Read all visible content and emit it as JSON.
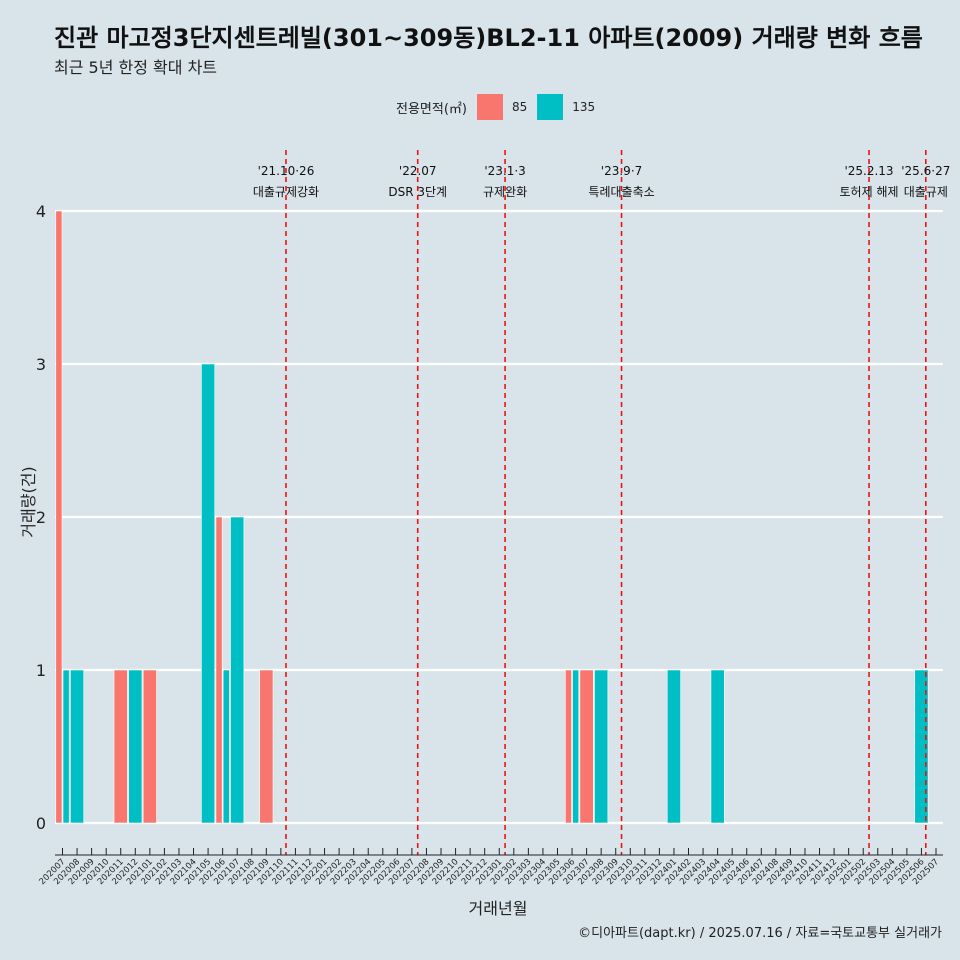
{
  "page": {
    "title": "진관 마고정3단지센트레빌(301~309동)BL2-11 아파트(2009) 거래량 변화 흐름",
    "subtitle": "최근 5년 한정 확대 차트",
    "footer": "©디아파트(dapt.kr) / 2025.07.16 / 자료=국토교통부 실거래가"
  },
  "legend": {
    "title": "전용면적(㎡)",
    "items": [
      {
        "label": "85",
        "color": "#f8766d"
      },
      {
        "label": "135",
        "color": "#00bfc4"
      }
    ]
  },
  "chart_data": {
    "type": "bar",
    "xlabel": "거래년월",
    "ylabel": "거래량(건)",
    "ylim": [
      0,
      4
    ],
    "yticks": [
      0,
      1,
      2,
      3,
      4
    ],
    "categories": [
      "202007",
      "202008",
      "202009",
      "202010",
      "202011",
      "202012",
      "202101",
      "202102",
      "202103",
      "202104",
      "202105",
      "202106",
      "202107",
      "202108",
      "202109",
      "202110",
      "202111",
      "202112",
      "202201",
      "202202",
      "202203",
      "202204",
      "202205",
      "202206",
      "202207",
      "202208",
      "202209",
      "202210",
      "202211",
      "202212",
      "202301",
      "202302",
      "202303",
      "202304",
      "202305",
      "202306",
      "202307",
      "202308",
      "202309",
      "202310",
      "202311",
      "202312",
      "202401",
      "202402",
      "202403",
      "202404",
      "202405",
      "202406",
      "202407",
      "202408",
      "202409",
      "202410",
      "202411",
      "202412",
      "202501",
      "202502",
      "202503",
      "202504",
      "202505",
      "202506",
      "202507"
    ],
    "series": [
      {
        "name": "85",
        "color": "#f8766d",
        "values": [
          4,
          0,
          0,
          0,
          1,
          0,
          1,
          0,
          0,
          0,
          0,
          2,
          0,
          0,
          1,
          0,
          0,
          0,
          0,
          0,
          0,
          0,
          0,
          0,
          0,
          0,
          0,
          0,
          0,
          0,
          0,
          0,
          0,
          0,
          0,
          1,
          1,
          0,
          0,
          0,
          0,
          0,
          0,
          0,
          0,
          0,
          0,
          0,
          0,
          0,
          0,
          0,
          0,
          0,
          0,
          0,
          0,
          0,
          0,
          0,
          0
        ]
      },
      {
        "name": "135",
        "color": "#00bfc4",
        "values": [
          1,
          1,
          0,
          0,
          0,
          1,
          0,
          0,
          0,
          0,
          3,
          1,
          2,
          0,
          0,
          0,
          0,
          0,
          0,
          0,
          0,
          0,
          0,
          0,
          0,
          0,
          0,
          0,
          0,
          0,
          0,
          0,
          0,
          0,
          0,
          1,
          0,
          1,
          0,
          0,
          0,
          0,
          1,
          0,
          0,
          1,
          0,
          0,
          0,
          0,
          0,
          0,
          0,
          0,
          0,
          0,
          0,
          0,
          0,
          1,
          0
        ]
      }
    ],
    "grid": true,
    "events": [
      {
        "date": "'21.10·26",
        "label": "대출규제강화",
        "index": 15.35
      },
      {
        "date": "'22.07",
        "label": "DSR 3단계",
        "index": 24.4
      },
      {
        "date": "'23.1·3",
        "label": "규제완화",
        "index": 30.4
      },
      {
        "date": "'23.9·7",
        "label": "특례대출축소",
        "index": 38.4
      },
      {
        "date": "'25.2.13",
        "label": "토허제 해제",
        "index": 55.4
      },
      {
        "date": "'25.6·27",
        "label": "대출규제",
        "index": 59.3
      }
    ]
  }
}
